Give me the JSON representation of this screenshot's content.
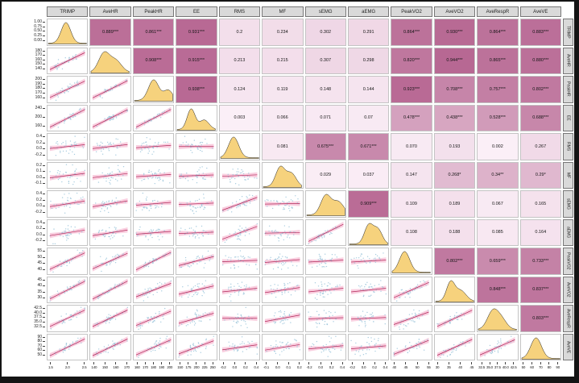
{
  "chart_data": {
    "type": "heatmap",
    "title": "Pairs plot / correlation matrix: density curves on diagonal, scatterplots with linear fit and confidence band in lower triangle, correlation coefficients in upper triangle",
    "legend_position": "none",
    "grid": false,
    "variables": [
      {
        "name": "TRIMP",
        "x_ticks": [
          "1.5",
          "2.0",
          "2.5"
        ],
        "y_ticks": [
          "1.00",
          "0.75",
          "0.50",
          "0.25",
          "0.00"
        ]
      },
      {
        "name": "AveHR",
        "x_ticks": [
          "140",
          "150",
          "160",
          "170"
        ],
        "y_ticks": [
          "180",
          "170",
          "160",
          "150",
          "140"
        ]
      },
      {
        "name": "PeakHR",
        "x_ticks": [
          "160",
          "170",
          "180",
          "190",
          "200"
        ],
        "y_ticks": [
          "200",
          "190",
          "180",
          "170",
          "160"
        ]
      },
      {
        "name": "EE",
        "x_ticks": [
          "150",
          "175",
          "200",
          "225",
          "250"
        ],
        "y_ticks": [
          "240",
          "200",
          "160"
        ]
      },
      {
        "name": "RMS",
        "x_ticks": [
          "-0.2",
          "0.0",
          "0.2",
          "0.4"
        ],
        "y_ticks": [
          "0.4",
          "0.2",
          "0.0",
          "-0.2"
        ]
      },
      {
        "name": "MF",
        "x_ticks": [
          "-0.1",
          "0.0",
          "0.1",
          "0.2"
        ],
        "y_ticks": [
          "0.2",
          "0.1",
          "0.0",
          "-0.1"
        ]
      },
      {
        "name": "sEMG",
        "x_ticks": [
          "-0.2",
          "0.0",
          "0.2",
          "0.4"
        ],
        "y_ticks": [
          "0.4",
          "0.2",
          "0.0",
          "-0.2"
        ]
      },
      {
        "name": "aEMG",
        "x_ticks": [
          "-0.2",
          "0.0",
          "0.2",
          "0.4"
        ],
        "y_ticks": [
          "0.4",
          "0.2",
          "0.0",
          "-0.2"
        ]
      },
      {
        "name": "PeakVO2",
        "x_ticks": [
          "40",
          "45",
          "50",
          "55"
        ],
        "y_ticks": [
          "55",
          "50",
          "45",
          "40"
        ]
      },
      {
        "name": "AveVO2",
        "x_ticks": [
          "30",
          "35",
          "40",
          "45"
        ],
        "y_ticks": [
          "45",
          "40",
          "35",
          "30"
        ]
      },
      {
        "name": "AveRespR",
        "x_ticks": [
          "32.5",
          "35.0",
          "37.5",
          "40.0",
          "42.5"
        ],
        "y_ticks": [
          "42.5",
          "40.0",
          "37.5",
          "35.0",
          "32.5"
        ]
      },
      {
        "name": "AveVE",
        "x_ticks": [
          "50",
          "60",
          "70",
          "80",
          "90"
        ],
        "y_ticks": [
          "90",
          "80",
          "70",
          "60",
          "50"
        ]
      }
    ],
    "upper_triangle_correlations": [
      [
        "",
        "0.889***",
        "0.861***",
        "0.931***",
        "0.2",
        "0.234",
        "0.302",
        "0.291",
        "0.864***",
        "0.930***",
        "0.864***",
        "0.883***"
      ],
      [
        "",
        "",
        "0.908***",
        "0.915***",
        "0.213",
        "0.215",
        "0.307",
        "0.298",
        "0.820***",
        "0.944***",
        "0.865***",
        "0.880***"
      ],
      [
        "",
        "",
        "",
        "0.938***",
        "0.124",
        "0.119",
        "0.148",
        "0.144",
        "0.923***",
        "0.708***",
        "0.757***",
        "0.802***"
      ],
      [
        "",
        "",
        "",
        "",
        "0.003",
        "0.066",
        "0.071",
        "0.07",
        "0.478***",
        "0.438***",
        "0.528***",
        "0.688***"
      ],
      [
        "",
        "",
        "",
        "",
        "",
        "0.081",
        "0.675***",
        "0.671***",
        "0.070",
        "0.193",
        "0.002",
        "0.267"
      ],
      [
        "",
        "",
        "",
        "",
        "",
        "",
        "0.029",
        "0.037",
        "0.147",
        "0.268*",
        "0.34**",
        "0.29*"
      ],
      [
        "",
        "",
        "",
        "",
        "",
        "",
        "",
        "0.909***",
        "0.109",
        "0.189",
        "0.067",
        "0.165"
      ],
      [
        "",
        "",
        "",
        "",
        "",
        "",
        "",
        "",
        "0.108",
        "0.188",
        "0.085",
        "0.164"
      ],
      [
        "",
        "",
        "",
        "",
        "",
        "",
        "",
        "",
        "",
        "0.802***",
        "0.659***",
        "0.733***"
      ],
      [
        "",
        "",
        "",
        "",
        "",
        "",
        "",
        "",
        "",
        "",
        "0.848***",
        "0.837***"
      ],
      [
        "",
        "",
        "",
        "",
        "",
        "",
        "",
        "",
        "",
        "",
        "",
        "0.803***"
      ],
      [
        "",
        "",
        "",
        "",
        "",
        "",
        "",
        "",
        "",
        "",
        "",
        ""
      ]
    ],
    "diagonal_panel": "density",
    "lower_triangle_panel": "scatter+linear-fit"
  },
  "style": {
    "tile_color_low": "#fbeff7",
    "tile_color_high": "#b4618e",
    "density_fill": "#f6d27d",
    "density_stroke": "#1a1a1a",
    "scatter_point_color": "#9fc6dc",
    "fit_line_color": "#b3285a",
    "fit_band_color": "#f39ec0",
    "header_bg": "#d9d9d9",
    "panel_border": "#c4c4c4"
  }
}
